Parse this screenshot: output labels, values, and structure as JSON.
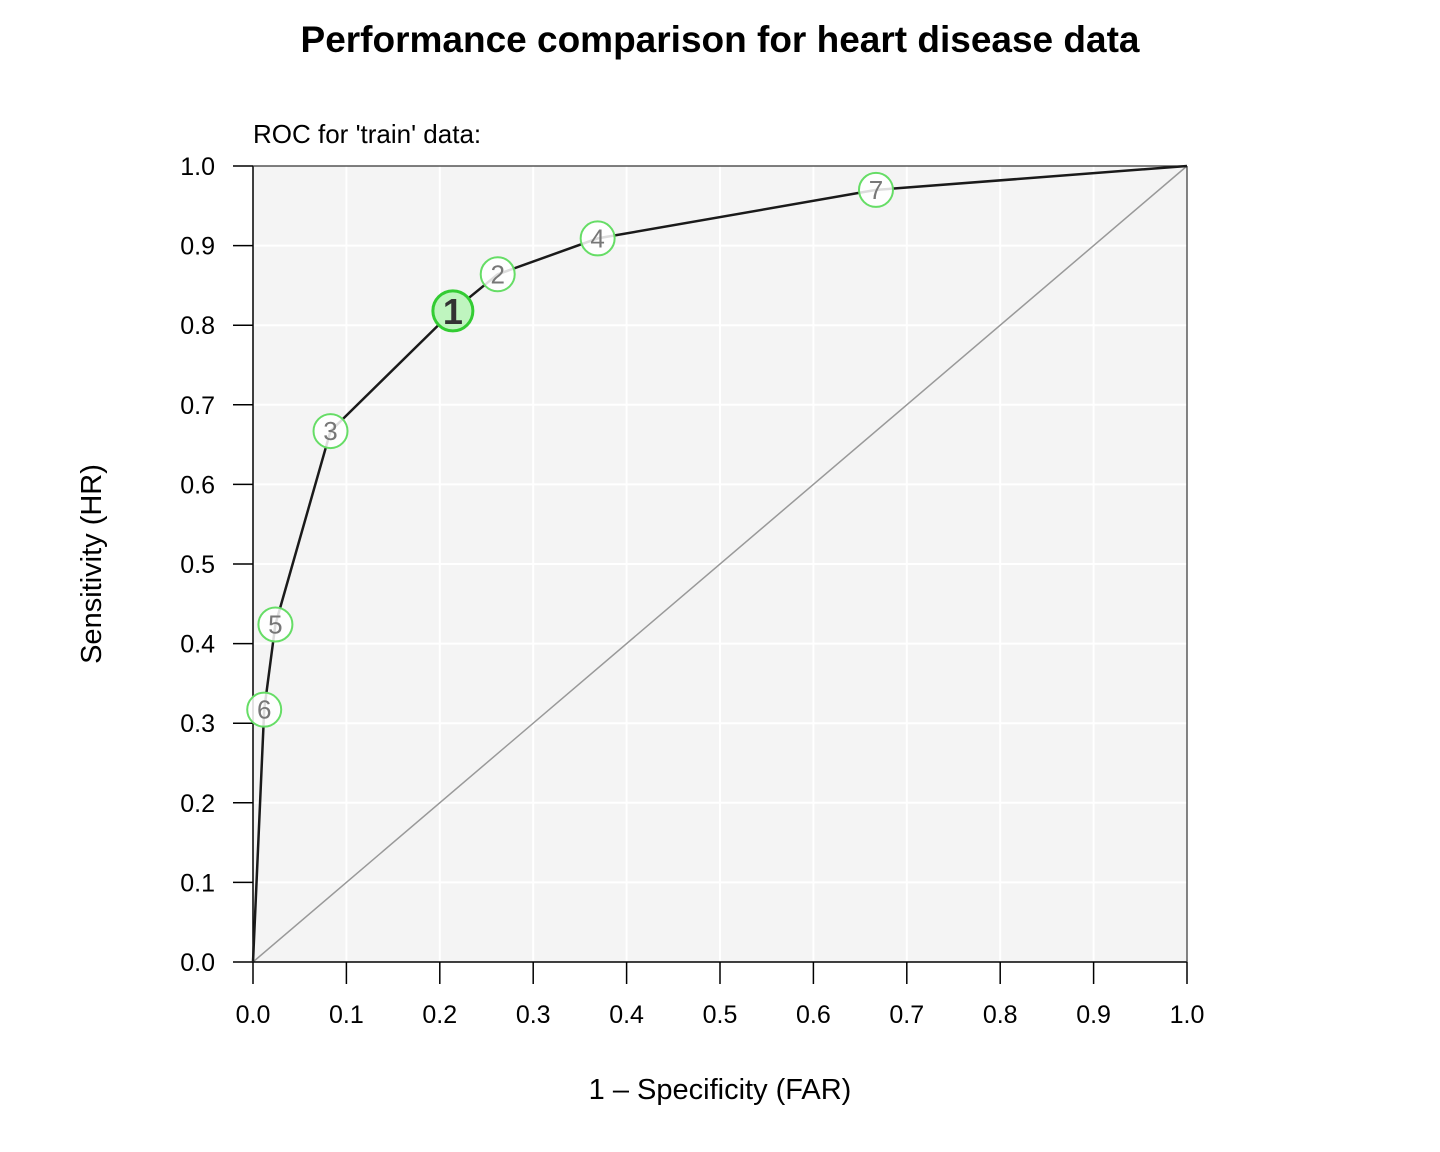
{
  "chart_data": {
    "type": "line",
    "title": "Performance comparison for heart disease data",
    "subtitle": "ROC for 'train' data:",
    "xlabel": "1 – Specificity (FAR)",
    "ylabel": "Sensitivity (HR)",
    "xlim": [
      0,
      1
    ],
    "ylim": [
      0,
      1
    ],
    "x_ticks": [
      "0.0",
      "0.1",
      "0.2",
      "0.3",
      "0.4",
      "0.5",
      "0.6",
      "0.7",
      "0.8",
      "0.9",
      "1.0"
    ],
    "y_ticks": [
      "0.0",
      "0.1",
      "0.2",
      "0.3",
      "0.4",
      "0.5",
      "0.6",
      "0.7",
      "0.8",
      "0.9",
      "1.0"
    ],
    "grid": true,
    "diagonal_reference": true,
    "curve": [
      {
        "x": 0.0,
        "y": 0.0
      },
      {
        "x": 0.012,
        "y": 0.317
      },
      {
        "x": 0.024,
        "y": 0.424
      },
      {
        "x": 0.083,
        "y": 0.667
      },
      {
        "x": 0.214,
        "y": 0.818
      },
      {
        "x": 0.262,
        "y": 0.864
      },
      {
        "x": 0.369,
        "y": 0.909
      },
      {
        "x": 0.667,
        "y": 0.97
      },
      {
        "x": 1.0,
        "y": 1.0
      }
    ],
    "points": [
      {
        "label": "1",
        "x": 0.214,
        "y": 0.818,
        "best": true
      },
      {
        "label": "2",
        "x": 0.262,
        "y": 0.864,
        "best": false
      },
      {
        "label": "3",
        "x": 0.083,
        "y": 0.667,
        "best": false
      },
      {
        "label": "4",
        "x": 0.369,
        "y": 0.909,
        "best": false
      },
      {
        "label": "5",
        "x": 0.024,
        "y": 0.424,
        "best": false
      },
      {
        "label": "6",
        "x": 0.012,
        "y": 0.317,
        "best": false
      },
      {
        "label": "7",
        "x": 0.667,
        "y": 0.97,
        "best": false
      }
    ],
    "colors": {
      "panel_bg": "#f4f4f4",
      "grid": "#ffffff",
      "curve": "#1a1a1a",
      "diagonal": "#999999",
      "point_ring": "#66dd66",
      "best_fill": "#bff5bf"
    }
  }
}
